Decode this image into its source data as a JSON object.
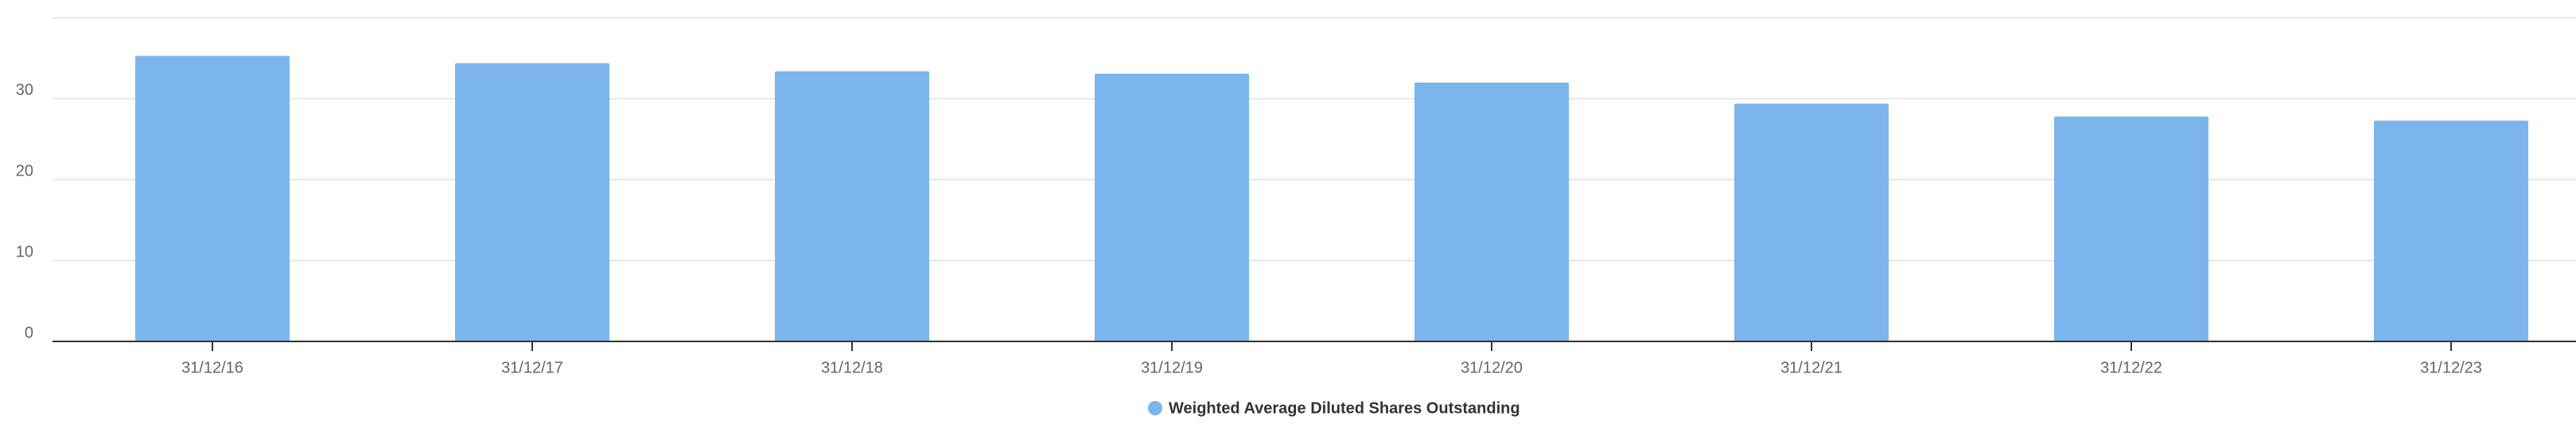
{
  "chart_data": {
    "type": "bar",
    "categories": [
      "31/12/16",
      "31/12/17",
      "31/12/18",
      "31/12/19",
      "31/12/20",
      "31/12/21",
      "31/12/22",
      "31/12/23"
    ],
    "series": [
      {
        "name": "Weighted Average Diluted Shares Outstanding",
        "color": "#7cb5ec",
        "values": [
          35.3,
          34.4,
          33.4,
          33.1,
          32.0,
          29.4,
          27.8,
          27.3
        ]
      }
    ],
    "ylim": [
      0,
      40
    ],
    "yticks": [
      0,
      10,
      20,
      30
    ],
    "grid": true
  }
}
